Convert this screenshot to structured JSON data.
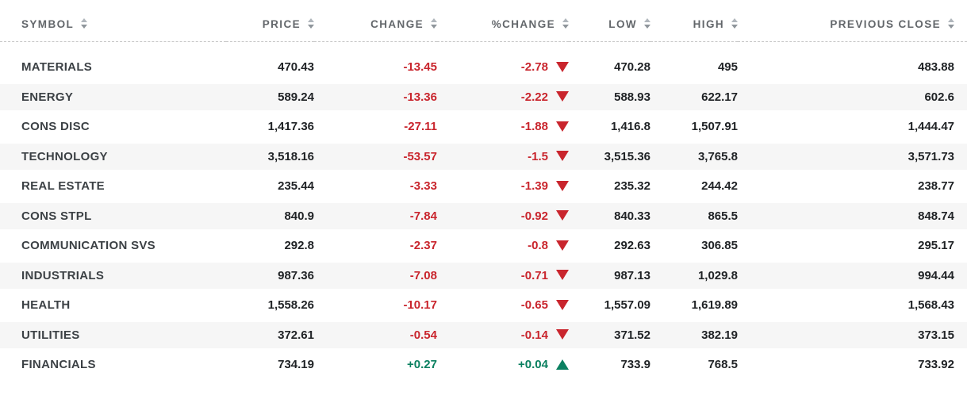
{
  "table": {
    "columns": [
      {
        "key": "symbol",
        "label": "SYMBOL"
      },
      {
        "key": "price",
        "label": "PRICE"
      },
      {
        "key": "change",
        "label": "CHANGE"
      },
      {
        "key": "pct_change",
        "label": "%CHANGE"
      },
      {
        "key": "low",
        "label": "LOW"
      },
      {
        "key": "high",
        "label": "HIGH"
      },
      {
        "key": "prev_close",
        "label": "PREVIOUS CLOSE"
      }
    ],
    "rows": [
      {
        "symbol": "MATERIALS",
        "price": "470.43",
        "change": "-13.45",
        "pct_change": "-2.78",
        "direction": "down",
        "low": "470.28",
        "high": "495",
        "prev_close": "483.88"
      },
      {
        "symbol": "ENERGY",
        "price": "589.24",
        "change": "-13.36",
        "pct_change": "-2.22",
        "direction": "down",
        "low": "588.93",
        "high": "622.17",
        "prev_close": "602.6"
      },
      {
        "symbol": "CONS DISC",
        "price": "1,417.36",
        "change": "-27.11",
        "pct_change": "-1.88",
        "direction": "down",
        "low": "1,416.8",
        "high": "1,507.91",
        "prev_close": "1,444.47"
      },
      {
        "symbol": "TECHNOLOGY",
        "price": "3,518.16",
        "change": "-53.57",
        "pct_change": "-1.5",
        "direction": "down",
        "low": "3,515.36",
        "high": "3,765.8",
        "prev_close": "3,571.73"
      },
      {
        "symbol": "REAL ESTATE",
        "price": "235.44",
        "change": "-3.33",
        "pct_change": "-1.39",
        "direction": "down",
        "low": "235.32",
        "high": "244.42",
        "prev_close": "238.77"
      },
      {
        "symbol": "CONS STPL",
        "price": "840.9",
        "change": "-7.84",
        "pct_change": "-0.92",
        "direction": "down",
        "low": "840.33",
        "high": "865.5",
        "prev_close": "848.74"
      },
      {
        "symbol": "COMMUNICATION SVS",
        "price": "292.8",
        "change": "-2.37",
        "pct_change": "-0.8",
        "direction": "down",
        "low": "292.63",
        "high": "306.85",
        "prev_close": "295.17"
      },
      {
        "symbol": "INDUSTRIALS",
        "price": "987.36",
        "change": "-7.08",
        "pct_change": "-0.71",
        "direction": "down",
        "low": "987.13",
        "high": "1,029.8",
        "prev_close": "994.44"
      },
      {
        "symbol": "HEALTH",
        "price": "1,558.26",
        "change": "-10.17",
        "pct_change": "-0.65",
        "direction": "down",
        "low": "1,557.09",
        "high": "1,619.89",
        "prev_close": "1,568.43"
      },
      {
        "symbol": "UTILITIES",
        "price": "372.61",
        "change": "-0.54",
        "pct_change": "-0.14",
        "direction": "down",
        "low": "371.52",
        "high": "382.19",
        "prev_close": "373.15"
      },
      {
        "symbol": "FINANCIALS",
        "price": "734.19",
        "change": "+0.27",
        "pct_change": "+0.04",
        "direction": "up",
        "low": "733.9",
        "high": "768.5",
        "prev_close": "733.92"
      }
    ],
    "colors": {
      "negative": "#c9252d",
      "positive": "#0a8060",
      "header_text": "#63676b",
      "row_alt_bg": "#f6f6f6"
    }
  }
}
